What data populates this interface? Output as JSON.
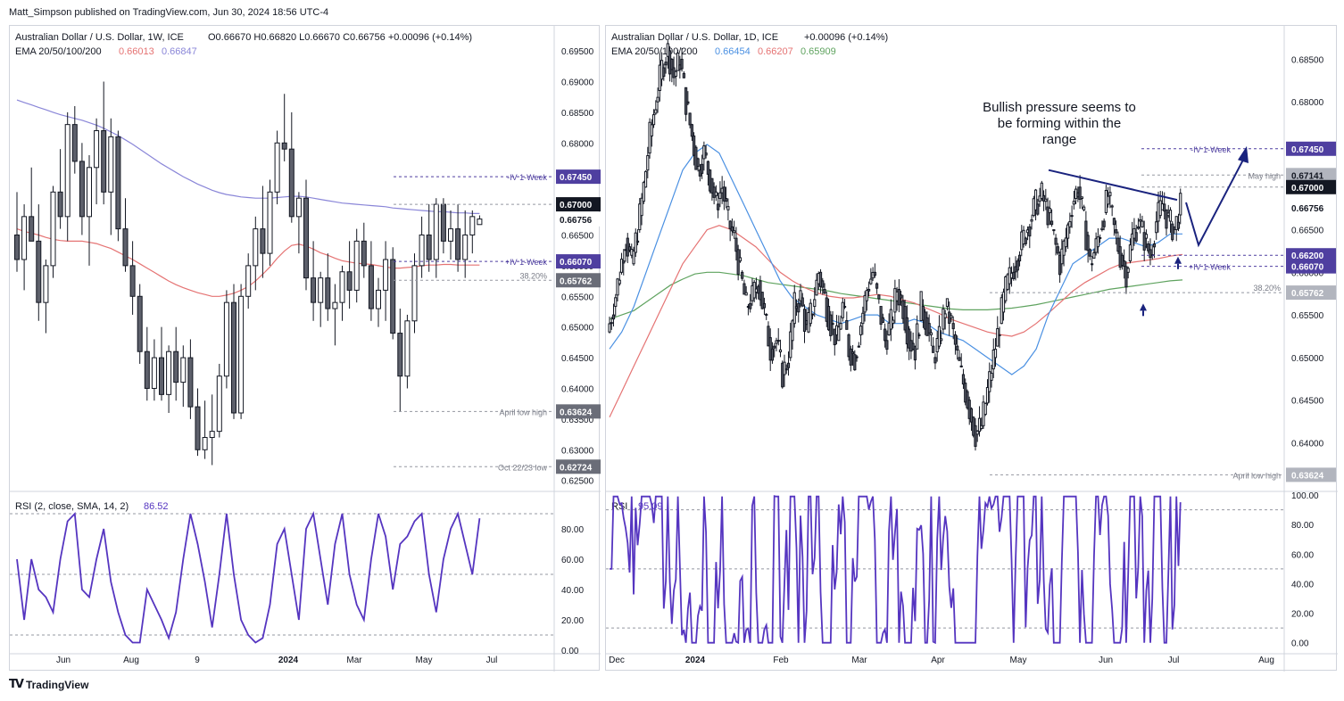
{
  "header": {
    "publisher_line": "Matt_Simpson published on TradingView.com, Jun 30, 2024 18:56 UTC-4"
  },
  "footer": {
    "brand": "TradingView"
  },
  "colors": {
    "candle": "#131722",
    "ema20": "#4a90e2",
    "ema50": "#e57373",
    "ema100": "#8a86d8",
    "ema200": "#5fa35f",
    "rsi": "#5535c0",
    "accent": "#4f3fa0"
  },
  "chart_data": [
    {
      "type": "candlestick",
      "title": "Australian Dollar / U.S. Dollar, 1W, ICE",
      "ohlc_readout": "O0.66670 H0.66820 L0.66670 C0.66756 +0.00096 (+0.14%)",
      "ema_legend": "EMA 20/50/100/200",
      "ema_values": [
        "0.66013",
        "0.66847"
      ],
      "ylim": [
        0.6235,
        0.6985
      ],
      "y_ticks": [
        "0.69500",
        "0.69000",
        "0.68500",
        "0.68000",
        "0.67500",
        "0.67000",
        "0.66500",
        "0.66000",
        "0.65500",
        "0.65000",
        "0.64500",
        "0.64000",
        "0.63500",
        "0.63000",
        "0.62500"
      ],
      "x_ticks": [
        "Jun",
        "Aug",
        "9",
        "2024",
        "Mar",
        "May",
        "Jul"
      ],
      "ohlc": [
        [
          0.665,
          0.672,
          0.659,
          0.661
        ],
        [
          0.661,
          0.67,
          0.656,
          0.668
        ],
        [
          0.668,
          0.676,
          0.664,
          0.664
        ],
        [
          0.664,
          0.67,
          0.651,
          0.654
        ],
        [
          0.654,
          0.661,
          0.649,
          0.66
        ],
        [
          0.66,
          0.673,
          0.658,
          0.672
        ],
        [
          0.672,
          0.679,
          0.666,
          0.668
        ],
        [
          0.668,
          0.685,
          0.664,
          0.683
        ],
        [
          0.683,
          0.686,
          0.675,
          0.677
        ],
        [
          0.677,
          0.68,
          0.665,
          0.668
        ],
        [
          0.668,
          0.678,
          0.66,
          0.676
        ],
        [
          0.676,
          0.684,
          0.67,
          0.682
        ],
        [
          0.682,
          0.69,
          0.67,
          0.672
        ],
        [
          0.672,
          0.684,
          0.665,
          0.681
        ],
        [
          0.681,
          0.682,
          0.664,
          0.666
        ],
        [
          0.666,
          0.671,
          0.659,
          0.66
        ],
        [
          0.66,
          0.664,
          0.652,
          0.655
        ],
        [
          0.655,
          0.657,
          0.644,
          0.646
        ],
        [
          0.646,
          0.65,
          0.638,
          0.64
        ],
        [
          0.64,
          0.648,
          0.638,
          0.645
        ],
        [
          0.645,
          0.65,
          0.638,
          0.639
        ],
        [
          0.639,
          0.647,
          0.636,
          0.646
        ],
        [
          0.646,
          0.65,
          0.638,
          0.641
        ],
        [
          0.641,
          0.647,
          0.637,
          0.645
        ],
        [
          0.645,
          0.648,
          0.635,
          0.637
        ],
        [
          0.637,
          0.64,
          0.629,
          0.63
        ],
        [
          0.63,
          0.638,
          0.6285,
          0.632
        ],
        [
          0.632,
          0.639,
          0.6275,
          0.633
        ],
        [
          0.633,
          0.644,
          0.632,
          0.642
        ],
        [
          0.642,
          0.656,
          0.64,
          0.654
        ],
        [
          0.654,
          0.657,
          0.635,
          0.636
        ],
        [
          0.636,
          0.657,
          0.635,
          0.655
        ],
        [
          0.655,
          0.662,
          0.653,
          0.66
        ],
        [
          0.66,
          0.668,
          0.656,
          0.666
        ],
        [
          0.666,
          0.673,
          0.658,
          0.662
        ],
        [
          0.662,
          0.674,
          0.66,
          0.672
        ],
        [
          0.672,
          0.682,
          0.67,
          0.68
        ],
        [
          0.68,
          0.688,
          0.677,
          0.679
        ],
        [
          0.679,
          0.685,
          0.667,
          0.668
        ],
        [
          0.668,
          0.672,
          0.662,
          0.671
        ],
        [
          0.671,
          0.674,
          0.656,
          0.658
        ],
        [
          0.658,
          0.664,
          0.651,
          0.654
        ],
        [
          0.654,
          0.659,
          0.65,
          0.658
        ],
        [
          0.658,
          0.662,
          0.651,
          0.653
        ],
        [
          0.653,
          0.657,
          0.647,
          0.654
        ],
        [
          0.654,
          0.66,
          0.651,
          0.659
        ],
        [
          0.659,
          0.664,
          0.653,
          0.656
        ],
        [
          0.656,
          0.666,
          0.654,
          0.664
        ],
        [
          0.664,
          0.667,
          0.658,
          0.66
        ],
        [
          0.66,
          0.664,
          0.651,
          0.653
        ],
        [
          0.653,
          0.658,
          0.65,
          0.656
        ],
        [
          0.656,
          0.664,
          0.651,
          0.661
        ],
        [
          0.661,
          0.663,
          0.648,
          0.649
        ],
        [
          0.649,
          0.653,
          0.6362,
          0.642
        ],
        [
          0.642,
          0.652,
          0.64,
          0.651
        ],
        [
          0.651,
          0.662,
          0.649,
          0.66
        ],
        [
          0.66,
          0.668,
          0.658,
          0.665
        ],
        [
          0.665,
          0.67,
          0.659,
          0.661
        ],
        [
          0.661,
          0.671,
          0.658,
          0.67
        ],
        [
          0.67,
          0.671,
          0.662,
          0.664
        ],
        [
          0.664,
          0.669,
          0.661,
          0.666
        ],
        [
          0.666,
          0.67,
          0.659,
          0.661
        ],
        [
          0.661,
          0.669,
          0.658,
          0.665
        ],
        [
          0.665,
          0.669,
          0.662,
          0.668
        ],
        [
          0.6667,
          0.6682,
          0.6667,
          0.6676
        ]
      ],
      "ema50": [
        0.666,
        0.6656,
        0.6653,
        0.665,
        0.6646,
        0.6643,
        0.6641,
        0.664,
        0.664,
        0.664,
        0.6638,
        0.6636,
        0.6632,
        0.6628,
        0.6622,
        0.6616,
        0.661,
        0.6603,
        0.6596,
        0.6589,
        0.6582,
        0.6575,
        0.6569,
        0.6564,
        0.656,
        0.6556,
        0.6553,
        0.655,
        0.655,
        0.6552,
        0.6555,
        0.656,
        0.6566,
        0.6575,
        0.6586,
        0.6598,
        0.6612,
        0.6624,
        0.6633,
        0.6635,
        0.6632,
        0.6627,
        0.6621,
        0.6617,
        0.6612,
        0.6608,
        0.6606,
        0.6604,
        0.6603,
        0.6602,
        0.66,
        0.6598,
        0.6596,
        0.6596,
        0.6597,
        0.6598,
        0.66,
        0.6601,
        0.6601,
        0.6602,
        0.6602,
        0.6601,
        0.6601,
        0.6601,
        0.6601
      ],
      "ema100": [
        0.687,
        0.6866,
        0.6862,
        0.6858,
        0.6854,
        0.685,
        0.6846,
        0.6843,
        0.684,
        0.6837,
        0.6833,
        0.6829,
        0.6824,
        0.6818,
        0.6812,
        0.6805,
        0.6798,
        0.679,
        0.6782,
        0.6774,
        0.6766,
        0.6759,
        0.6752,
        0.6745,
        0.6739,
        0.6733,
        0.6728,
        0.6723,
        0.6719,
        0.6716,
        0.6714,
        0.6712,
        0.6711,
        0.671,
        0.671,
        0.671,
        0.6711,
        0.6712,
        0.6713,
        0.6713,
        0.6712,
        0.671,
        0.6708,
        0.6706,
        0.6704,
        0.6702,
        0.6701,
        0.67,
        0.6699,
        0.6698,
        0.6697,
        0.6696,
        0.6694,
        0.6693,
        0.6692,
        0.6691,
        0.669,
        0.6689,
        0.6688,
        0.6688,
        0.6687,
        0.6686,
        0.6686,
        0.6685,
        0.6685
      ],
      "rsi_title": "RSI (2, close, SMA, 14, 2)",
      "rsi_value": "86.52",
      "rsi_ylim": [
        0,
        100
      ],
      "rsi_ticks": [
        "80.00",
        "60.00",
        "40.00",
        "20.00",
        "0.00"
      ],
      "rsi": [
        60,
        20,
        60,
        40,
        35,
        25,
        60,
        85,
        90,
        40,
        35,
        60,
        80,
        45,
        25,
        10,
        5,
        5,
        40,
        30,
        20,
        8,
        25,
        60,
        90,
        70,
        45,
        15,
        50,
        90,
        50,
        20,
        10,
        5,
        8,
        30,
        70,
        80,
        50,
        20,
        80,
        90,
        60,
        30,
        70,
        90,
        50,
        30,
        20,
        60,
        90,
        75,
        40,
        70,
        75,
        85,
        90,
        50,
        25,
        60,
        80,
        90,
        70,
        50,
        87
      ],
      "rsi_levels": [
        90,
        50,
        10
      ],
      "annotations": [
        {
          "label": "-IV 1-Week",
          "tag": "0.67450",
          "y": 0.6745
        },
        {
          "label": "",
          "tag": "0.67000",
          "y": 0.67
        },
        {
          "label": "",
          "tag": "0.66756",
          "y": 0.66756
        },
        {
          "label": "+IV 1-Week",
          "tag": "0.66070",
          "y": 0.6607
        },
        {
          "label": "38.20%",
          "tag": "0.65762",
          "y": 0.65762
        },
        {
          "label": "April low high",
          "tag": "0.63624",
          "y": 0.63624
        },
        {
          "label": "Oct 22/23 low",
          "tag": "0.62724",
          "y": 0.62724
        }
      ]
    },
    {
      "type": "candlestick",
      "title": "Australian Dollar / U.S. Dollar, 1D, ICE",
      "change_readout": "+0.00096 (+0.14%)",
      "ema_legend": "EMA 20/50/100/200",
      "ema_values": [
        "0.66454",
        "0.66207",
        "0.65909"
      ],
      "ylim": [
        0.6345,
        0.6885
      ],
      "y_ticks": [
        "0.68500",
        "0.68000",
        "0.67500",
        "0.67000",
        "0.66500",
        "0.66000",
        "0.65500",
        "0.65000",
        "0.64500",
        "0.64000"
      ],
      "x_ticks": [
        "Dec",
        "2024",
        "Feb",
        "Mar",
        "Apr",
        "May",
        "Jun",
        "Jul",
        "Aug"
      ],
      "ohlc_anchor_path": [
        0.653,
        0.656,
        0.66,
        0.664,
        0.661,
        0.665,
        0.67,
        0.676,
        0.68,
        0.684,
        0.686,
        0.683,
        0.685,
        0.68,
        0.676,
        0.672,
        0.674,
        0.671,
        0.668,
        0.67,
        0.666,
        0.664,
        0.66,
        0.656,
        0.657,
        0.659,
        0.655,
        0.651,
        0.652,
        0.648,
        0.65,
        0.656,
        0.657,
        0.653,
        0.656,
        0.66,
        0.657,
        0.654,
        0.652,
        0.656,
        0.651,
        0.65,
        0.654,
        0.658,
        0.66,
        0.656,
        0.652,
        0.654,
        0.658,
        0.656,
        0.652,
        0.651,
        0.656,
        0.654,
        0.65,
        0.652,
        0.656,
        0.654,
        0.65,
        0.647,
        0.644,
        0.641,
        0.642,
        0.646,
        0.65,
        0.654,
        0.658,
        0.66,
        0.662,
        0.664,
        0.666,
        0.668,
        0.669,
        0.667,
        0.664,
        0.661,
        0.664,
        0.668,
        0.67,
        0.666,
        0.661,
        0.663,
        0.666,
        0.669,
        0.665,
        0.662,
        0.66,
        0.664,
        0.666,
        0.664,
        0.662,
        0.666,
        0.668,
        0.666,
        0.665,
        0.6676
      ],
      "ema20": [
        0.651,
        0.653,
        0.656,
        0.66,
        0.664,
        0.668,
        0.672,
        0.674,
        0.675,
        0.674,
        0.671,
        0.668,
        0.665,
        0.662,
        0.659,
        0.657,
        0.656,
        0.655,
        0.6545,
        0.654,
        0.6545,
        0.655,
        0.655,
        0.654,
        0.654,
        0.6545,
        0.654,
        0.653,
        0.6525,
        0.652,
        0.651,
        0.65,
        0.649,
        0.648,
        0.649,
        0.651,
        0.655,
        0.658,
        0.661,
        0.662,
        0.663,
        0.664,
        0.664,
        0.6635,
        0.663,
        0.6635,
        0.6645,
        0.6645
      ],
      "ema50": [
        0.643,
        0.646,
        0.649,
        0.652,
        0.655,
        0.658,
        0.661,
        0.663,
        0.665,
        0.6655,
        0.665,
        0.664,
        0.663,
        0.6615,
        0.66,
        0.659,
        0.6582,
        0.6576,
        0.6572,
        0.657,
        0.657,
        0.6572,
        0.6574,
        0.6572,
        0.6568,
        0.6564,
        0.6558,
        0.6552,
        0.6545,
        0.654,
        0.6535,
        0.653,
        0.6527,
        0.6525,
        0.653,
        0.654,
        0.6552,
        0.6565,
        0.6578,
        0.6588,
        0.6596,
        0.6604,
        0.661,
        0.6612,
        0.6614,
        0.6616,
        0.6619,
        0.6621
      ],
      "ema100": [
        0.6545,
        0.655,
        0.6555,
        0.6565,
        0.6575,
        0.6585,
        0.6592,
        0.6598,
        0.66,
        0.66,
        0.6598,
        0.6596,
        0.6592,
        0.6588,
        0.6586,
        0.6584,
        0.6582,
        0.658,
        0.6578,
        0.6575,
        0.6573,
        0.6571,
        0.6569,
        0.6567,
        0.6565,
        0.6563,
        0.6561,
        0.6559,
        0.6557,
        0.6556,
        0.6556,
        0.6556,
        0.6557,
        0.6558,
        0.656,
        0.6562,
        0.6565,
        0.6568,
        0.6571,
        0.6574,
        0.6577,
        0.658,
        0.6582,
        0.6584,
        0.6586,
        0.6588,
        0.659,
        0.6591
      ],
      "rsi_title": "RSI",
      "rsi_value": "95.09",
      "rsi_ylim": [
        -5,
        100
      ],
      "rsi_ticks": [
        "100.00",
        "80.00",
        "60.00",
        "40.00",
        "20.00",
        "0.00"
      ],
      "rsi_levels": [
        90,
        50,
        10
      ],
      "annotation_text": "Bullish pressure seems to be forming within the range",
      "annotations": [
        {
          "label": "-IV 1-Week",
          "tag": "0.67450",
          "y": 0.6745
        },
        {
          "label": "May high",
          "tag": "0.67141",
          "y": 0.67141
        },
        {
          "label": "",
          "tag": "0.67000",
          "y": 0.67
        },
        {
          "label": "",
          "tag": "0.66756",
          "y": 0.66756
        },
        {
          "label": "",
          "tag": "0.66200",
          "y": 0.662
        },
        {
          "label": "+IV 1-Week",
          "tag": "0.66070",
          "y": 0.6607
        },
        {
          "label": "38.20%",
          "tag": "0.65762",
          "y": 0.65762
        },
        {
          "label": "April low high",
          "tag": "0.63624",
          "y": 0.63624
        }
      ]
    }
  ]
}
